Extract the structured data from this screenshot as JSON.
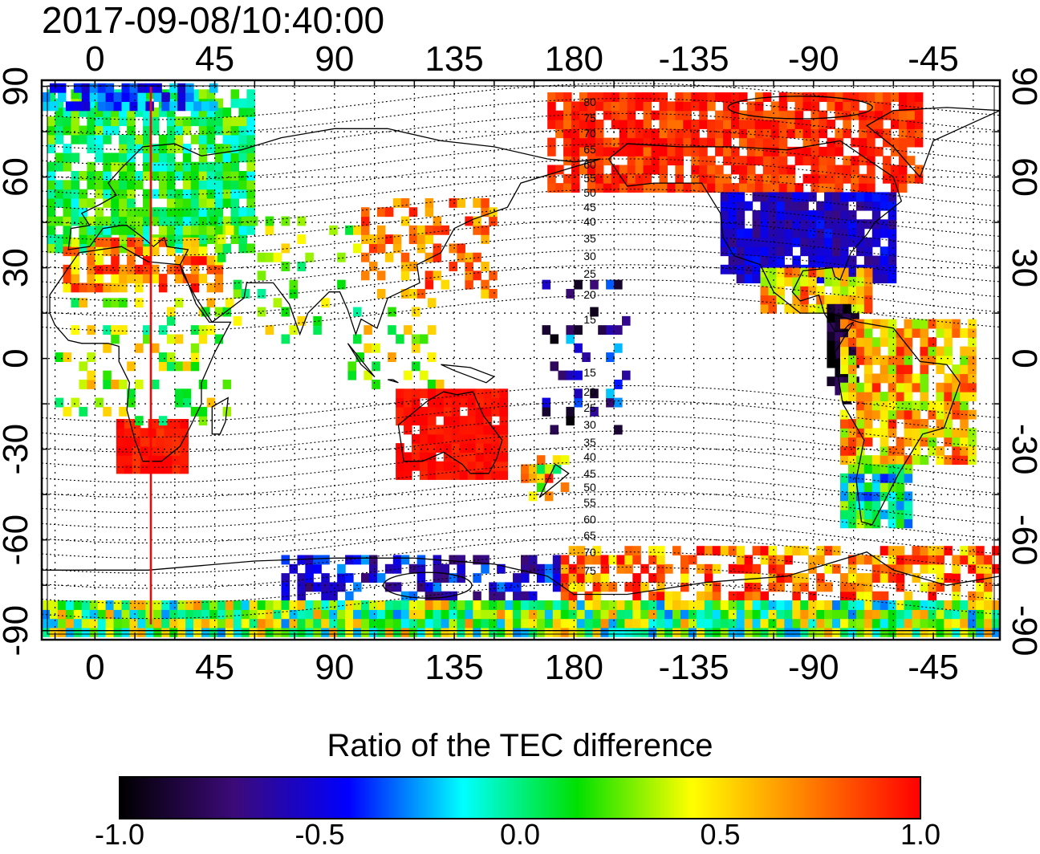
{
  "timestamp": "2017-09-08/10:40:00",
  "x_ticks": [
    {
      "lon": 0,
      "label": "0"
    },
    {
      "lon": 45,
      "label": "45"
    },
    {
      "lon": 90,
      "label": "90"
    },
    {
      "lon": 135,
      "label": "135"
    },
    {
      "lon": 180,
      "label": "180"
    },
    {
      "lon": 225,
      "label": "-135"
    },
    {
      "lon": 270,
      "label": "-90"
    },
    {
      "lon": 315,
      "label": "-45"
    }
  ],
  "y_ticks": [
    {
      "lat": 90,
      "label": "90"
    },
    {
      "lat": 60,
      "label": "60"
    },
    {
      "lat": 30,
      "label": "30"
    },
    {
      "lat": 0,
      "label": "0"
    },
    {
      "lat": -30,
      "label": "-30"
    },
    {
      "lat": -60,
      "label": "-60"
    },
    {
      "lat": -90,
      "label": "-90"
    }
  ],
  "contour_labels": [
    "80",
    "75",
    "70",
    "65",
    "60",
    "55",
    "50",
    "45",
    "40",
    "35",
    "30",
    "25",
    "20",
    "15",
    "15",
    "20",
    "25",
    "30",
    "35",
    "40",
    "45",
    "50",
    "55",
    "60",
    "65",
    "70",
    "75"
  ],
  "marker_longitude": 21,
  "colorbar": {
    "title": "Ratio of the TEC difference",
    "ticks": [
      {
        "value": -1.0,
        "label": "-1.0"
      },
      {
        "value": -0.5,
        "label": "-0.5"
      },
      {
        "value": 0.0,
        "label": "0.0"
      },
      {
        "value": 0.5,
        "label": "0.5"
      },
      {
        "value": 1.0,
        "label": "1.0"
      }
    ],
    "colors": [
      "#000000",
      "#3c0a78",
      "#0000ff",
      "#00ffff",
      "#00e000",
      "#ffff00",
      "#ff8000",
      "#ff0000"
    ]
  },
  "colors": {
    "marker_line": "#ff0000",
    "frame": "#000000",
    "grid": "#000000",
    "coast": "#000000"
  }
}
